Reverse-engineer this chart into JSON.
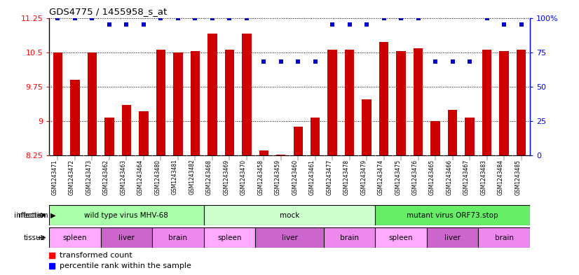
{
  "title": "GDS4775 / 1455958_s_at",
  "samples": [
    "GSM1243471",
    "GSM1243472",
    "GSM1243473",
    "GSM1243462",
    "GSM1243463",
    "GSM1243464",
    "GSM1243480",
    "GSM1243481",
    "GSM1243482",
    "GSM1243468",
    "GSM1243469",
    "GSM1243470",
    "GSM1243458",
    "GSM1243459",
    "GSM1243460",
    "GSM1243461",
    "GSM1243477",
    "GSM1243478",
    "GSM1243479",
    "GSM1243474",
    "GSM1243475",
    "GSM1243476",
    "GSM1243465",
    "GSM1243466",
    "GSM1243467",
    "GSM1243483",
    "GSM1243484",
    "GSM1243485"
  ],
  "bar_values": [
    10.5,
    9.9,
    10.5,
    9.08,
    9.35,
    9.22,
    10.55,
    10.5,
    10.52,
    10.9,
    10.55,
    10.9,
    8.35,
    8.27,
    8.88,
    9.07,
    10.55,
    10.55,
    9.47,
    10.73,
    10.52,
    10.58,
    9.0,
    9.25,
    9.07,
    10.55,
    10.52,
    10.55
  ],
  "percentile_values": [
    100,
    100,
    100,
    95,
    95,
    95,
    100,
    100,
    100,
    100,
    100,
    100,
    68,
    68,
    68,
    68,
    95,
    95,
    95,
    100,
    100,
    100,
    68,
    68,
    68,
    100,
    95,
    95
  ],
  "bar_color": "#cc0000",
  "percentile_color": "#0000cc",
  "ymin": 8.25,
  "ymax": 11.25,
  "yticks": [
    8.25,
    9.0,
    9.75,
    10.5,
    11.25
  ],
  "ytick_labels": [
    "8.25",
    "9",
    "9.75",
    "10.5",
    "11.25"
  ],
  "y2min": 0,
  "y2max": 100,
  "y2ticks": [
    0,
    25,
    50,
    75,
    100
  ],
  "y2tick_labels": [
    "0",
    "25",
    "50",
    "75",
    "100%"
  ],
  "infection_groups": [
    {
      "label": "wild type virus MHV-68",
      "start": 0,
      "end": 9,
      "color": "#aaffaa"
    },
    {
      "label": "mock",
      "start": 9,
      "end": 19,
      "color": "#ccffcc"
    },
    {
      "label": "mutant virus ORF73.stop",
      "start": 19,
      "end": 28,
      "color": "#66ee66"
    }
  ],
  "tissue_groups": [
    {
      "label": "spleen",
      "start": 0,
      "end": 3,
      "color_key": "spleen"
    },
    {
      "label": "liver",
      "start": 3,
      "end": 6,
      "color_key": "liver"
    },
    {
      "label": "brain",
      "start": 6,
      "end": 9,
      "color_key": "brain"
    },
    {
      "label": "spleen",
      "start": 9,
      "end": 12,
      "color_key": "spleen"
    },
    {
      "label": "liver",
      "start": 12,
      "end": 16,
      "color_key": "liver"
    },
    {
      "label": "brain",
      "start": 16,
      "end": 19,
      "color_key": "brain"
    },
    {
      "label": "spleen",
      "start": 19,
      "end": 22,
      "color_key": "spleen"
    },
    {
      "label": "liver",
      "start": 22,
      "end": 25,
      "color_key": "liver"
    },
    {
      "label": "brain",
      "start": 25,
      "end": 28,
      "color_key": "brain"
    }
  ],
  "tissue_colors": {
    "spleen": "#ffaaff",
    "liver": "#cc66cc",
    "brain": "#ee88ee"
  },
  "bg_chart": "#ffffff",
  "bg_xticklabel": "#e0e0e0"
}
